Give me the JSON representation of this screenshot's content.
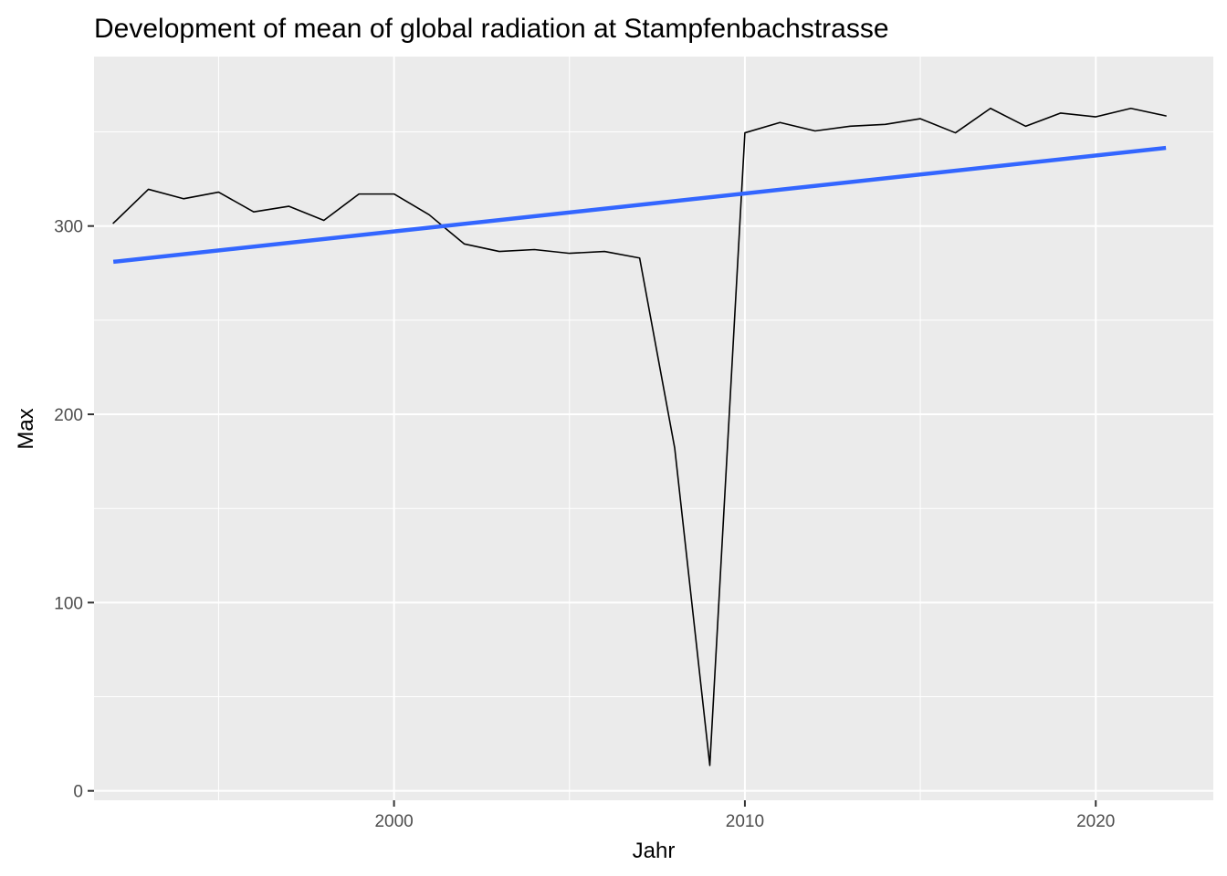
{
  "chart_data": {
    "type": "line",
    "title": "Development of mean of global radiation at Stampfenbachstrasse",
    "xlabel": "Jahr",
    "ylabel": "Max",
    "xlim": [
      1991.45,
      2023.35
    ],
    "ylim": [
      -5,
      390
    ],
    "x_ticks": [
      2000,
      2010,
      2020
    ],
    "x_tick_labels": [
      "2000",
      "2010",
      "2020"
    ],
    "y_ticks": [
      0,
      100,
      200,
      300
    ],
    "y_tick_labels": [
      "0",
      "100",
      "200",
      "300"
    ],
    "grid": true,
    "background": "#ebebeb",
    "gridline_color": "#ffffff",
    "series": [
      {
        "kind": "line",
        "color": "#000000",
        "x": [
          1992,
          1993,
          1994,
          1995,
          1996,
          1997,
          1998,
          1999,
          2000,
          2001,
          2002,
          2003,
          2004,
          2005,
          2006,
          2007,
          2008,
          2009,
          2010,
          2011,
          2012,
          2013,
          2014,
          2015,
          2016,
          2017,
          2018,
          2019,
          2020,
          2021,
          2022
        ],
        "values": [
          301.5,
          319.5,
          314.5,
          318,
          307.5,
          310.5,
          303,
          317,
          317,
          306,
          290.5,
          286.5,
          287.5,
          285.5,
          286.5,
          283,
          182,
          13.5,
          349.5,
          355,
          350.5,
          353,
          354,
          357,
          349.5,
          362.5,
          353,
          360,
          358,
          362.5,
          358.5
        ]
      },
      {
        "kind": "trend",
        "color": "#3366ff",
        "x": [
          1992,
          2022
        ],
        "values": [
          281,
          341.5
        ]
      }
    ]
  }
}
